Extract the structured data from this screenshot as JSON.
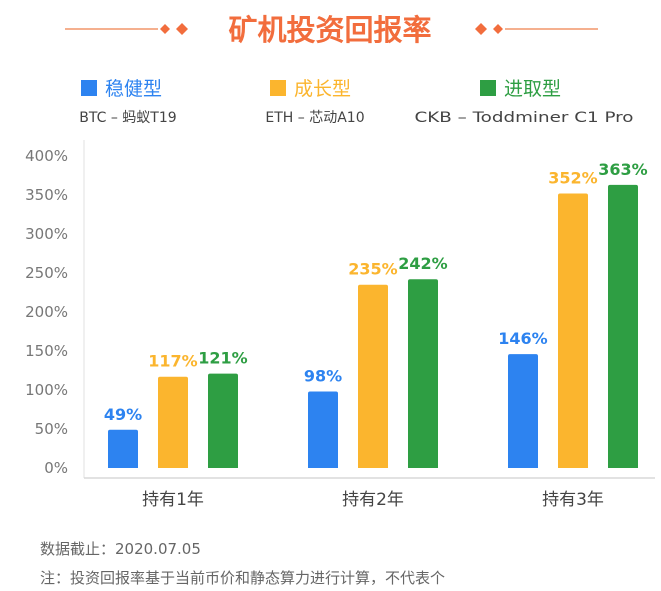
{
  "chart_data": {
    "type": "bar",
    "title": "矿机投资回报率",
    "categories": [
      "持有1年",
      "持有2年",
      "持有3年"
    ],
    "series": [
      {
        "name": "稳健型",
        "desc": "BTC – 蚂蚁T19",
        "color": "#2D83F0",
        "values": [
          49,
          98,
          146
        ],
        "labels": [
          "49%",
          "98%",
          "146%"
        ]
      },
      {
        "name": "成长型",
        "desc": "ETH – 芯动A10",
        "color": "#FBB52E",
        "values": [
          117,
          235,
          352
        ],
        "labels": [
          "117%",
          "235%",
          "352%"
        ]
      },
      {
        "name": "进取型",
        "desc": "CKB – Toddminer C1 Pro",
        "color": "#2E9E43",
        "values": [
          121,
          242,
          363
        ],
        "labels": [
          "121%",
          "242%",
          "363%"
        ]
      }
    ],
    "ylim": [
      0,
      400
    ],
    "yticks": [
      "0%",
      "50%",
      "100%",
      "150%",
      "200%",
      "250%",
      "300%",
      "350%",
      "400%"
    ],
    "grid": false,
    "legend": "top",
    "title_color": "#F26D3D"
  },
  "notes": {
    "data_date": "数据截止：2020.07.05",
    "disclaimer": "注：投资回报率基于当前币价和静态算力进行计算，不代表个"
  }
}
